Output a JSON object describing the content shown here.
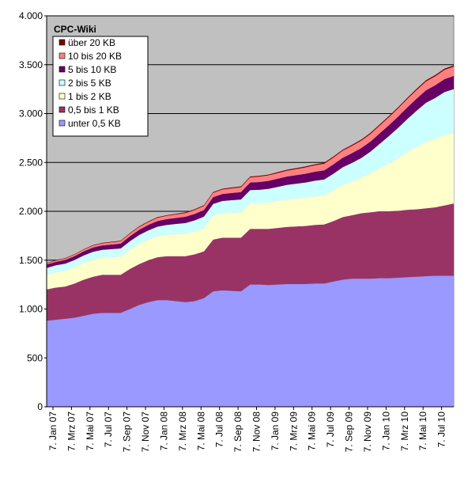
{
  "chart_data": {
    "type": "area",
    "stacked": true,
    "title": "CPC-Wiki",
    "xlabel": "",
    "ylabel": "",
    "ylim": [
      0,
      4000
    ],
    "y_ticks": [
      0,
      500,
      1000,
      1500,
      2000,
      2500,
      3000,
      3500,
      4000
    ],
    "y_tick_labels": [
      "0",
      "500",
      "1.000",
      "1.500",
      "2.000",
      "2.500",
      "3.000",
      "3.500",
      "4.000"
    ],
    "x_tick_labels": [
      "7. Jan 07",
      "7. Mrz 07",
      "7. Mai 07",
      "7. Jul 07",
      "7. Sep 07",
      "7. Nov 07",
      "7. Jan 08",
      "7. Mrz 08",
      "7. Mai 08",
      "7. Jul 08",
      "7. Sep 08",
      "7. Nov 08",
      "7. Jan 09",
      "7. Mrz 09",
      "7. Mai 09",
      "7. Jul 09",
      "7. Sep 09",
      "7. Nov 09",
      "7. Jan 10",
      "7. Mrz 10",
      "7. Mai 10",
      "7. Jul 10"
    ],
    "grid": true,
    "legend_position": "top-left",
    "plot_background": "#c0c0c0",
    "x": [
      "2007-01",
      "2007-02",
      "2007-03",
      "2007-04",
      "2007-05",
      "2007-06",
      "2007-07",
      "2007-08",
      "2007-09",
      "2007-10",
      "2007-11",
      "2007-12",
      "2008-01",
      "2008-02",
      "2008-03",
      "2008-04",
      "2008-05",
      "2008-06",
      "2008-07",
      "2008-08",
      "2008-09",
      "2008-10",
      "2008-11",
      "2008-12",
      "2009-01",
      "2009-02",
      "2009-03",
      "2009-04",
      "2009-05",
      "2009-06",
      "2009-07",
      "2009-08",
      "2009-09",
      "2009-10",
      "2009-11",
      "2009-12",
      "2010-01",
      "2010-02",
      "2010-03",
      "2010-04",
      "2010-05",
      "2010-06",
      "2010-07",
      "2010-08",
      "2010-09"
    ],
    "series": [
      {
        "name": "unter 0,5 KB",
        "color": "#9999ff",
        "values": [
          880,
          890,
          900,
          910,
          930,
          950,
          960,
          960,
          960,
          1000,
          1040,
          1070,
          1090,
          1090,
          1080,
          1070,
          1080,
          1110,
          1180,
          1190,
          1185,
          1180,
          1250,
          1250,
          1245,
          1250,
          1255,
          1255,
          1255,
          1260,
          1260,
          1280,
          1300,
          1310,
          1310,
          1310,
          1315,
          1315,
          1320,
          1325,
          1330,
          1335,
          1340,
          1340,
          1340
        ]
      },
      {
        "name": "0,5 bis 1 KB",
        "color": "#993366",
        "values": [
          320,
          330,
          330,
          350,
          370,
          380,
          390,
          390,
          390,
          410,
          420,
          430,
          440,
          450,
          460,
          470,
          480,
          480,
          530,
          540,
          545,
          550,
          570,
          570,
          575,
          580,
          585,
          590,
          595,
          600,
          605,
          620,
          640,
          650,
          670,
          680,
          685,
          685,
          685,
          690,
          690,
          695,
          700,
          720,
          740
        ]
      },
      {
        "name": "1 bis 2 KB",
        "color": "#ffffcc",
        "values": [
          150,
          155,
          160,
          165,
          170,
          175,
          175,
          180,
          185,
          195,
          205,
          210,
          215,
          220,
          225,
          230,
          235,
          240,
          245,
          250,
          255,
          260,
          265,
          265,
          270,
          275,
          280,
          285,
          290,
          295,
          300,
          315,
          330,
          345,
          365,
          400,
          440,
          490,
          540,
          590,
          640,
          680,
          700,
          720,
          720
        ]
      },
      {
        "name": "2 bis 5 KB",
        "color": "#ccffff",
        "values": [
          70,
          72,
          74,
          76,
          78,
          80,
          80,
          82,
          84,
          88,
          92,
          95,
          98,
          100,
          105,
          110,
          112,
          115,
          120,
          125,
          128,
          130,
          132,
          135,
          140,
          145,
          150,
          152,
          155,
          158,
          160,
          170,
          180,
          190,
          200,
          220,
          250,
          280,
          310,
          340,
          370,
          400,
          420,
          440,
          450
        ]
      },
      {
        "name": "5 bis 10 KB",
        "color": "#660066",
        "values": [
          35,
          36,
          38,
          40,
          42,
          45,
          46,
          48,
          50,
          52,
          54,
          56,
          58,
          60,
          62,
          64,
          66,
          68,
          70,
          72,
          74,
          76,
          78,
          80,
          82,
          84,
          86,
          88,
          90,
          92,
          94,
          96,
          98,
          100,
          102,
          104,
          108,
          112,
          116,
          120,
          124,
          128,
          130,
          132,
          135
        ]
      },
      {
        "name": "10 bis 20 KB",
        "color": "#ff8080",
        "values": [
          12,
          13,
          14,
          15,
          16,
          18,
          20,
          22,
          24,
          26,
          28,
          30,
          32,
          34,
          36,
          38,
          40,
          42,
          44,
          46,
          48,
          50,
          52,
          54,
          56,
          58,
          60,
          62,
          64,
          66,
          68,
          70,
          72,
          74,
          76,
          78,
          80,
          82,
          84,
          86,
          88,
          90,
          92,
          94,
          96
        ]
      },
      {
        "name": "über 20 KB",
        "color": "#800000",
        "values": [
          5,
          5,
          5,
          5,
          5,
          6,
          6,
          6,
          6,
          6,
          7,
          7,
          7,
          7,
          7,
          8,
          8,
          8,
          8,
          8,
          9,
          9,
          9,
          9,
          9,
          10,
          10,
          10,
          10,
          10,
          11,
          11,
          11,
          11,
          11,
          12,
          12,
          12,
          12,
          12,
          13,
          13,
          13,
          13,
          13
        ]
      }
    ]
  }
}
